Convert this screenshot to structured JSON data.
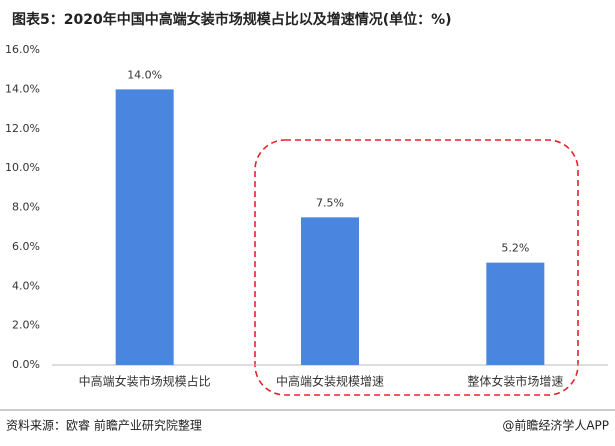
{
  "chart_data": {
    "type": "bar",
    "title": "图表5：2020年中国中高端女装市场规模占比以及增速情况(单位：%)",
    "categories": [
      "中高端女装市场规模占比",
      "中高端女装规模增速",
      "整体女装市场增速"
    ],
    "values": [
      14.0,
      7.5,
      5.2
    ],
    "value_labels": [
      "14.0%",
      "7.5%",
      "5.2%"
    ],
    "color": "#4a86e0",
    "ylim": [
      0,
      16
    ],
    "yticks": [
      {
        "value": 0,
        "label": "0.0%"
      },
      {
        "value": 2,
        "label": "2.0%"
      },
      {
        "value": 4,
        "label": "4.0%"
      },
      {
        "value": 6,
        "label": "6.0%"
      },
      {
        "value": 8,
        "label": "8.0%"
      },
      {
        "value": 10,
        "label": "10.0%"
      },
      {
        "value": 12,
        "label": "12.0%"
      },
      {
        "value": 14,
        "label": "14.0%"
      },
      {
        "value": 16,
        "label": "16.0%"
      }
    ],
    "grid": false,
    "source": "资料来源：欧睿 前瞻产业研究院整理",
    "credit": "@前瞻经济学人APP"
  }
}
